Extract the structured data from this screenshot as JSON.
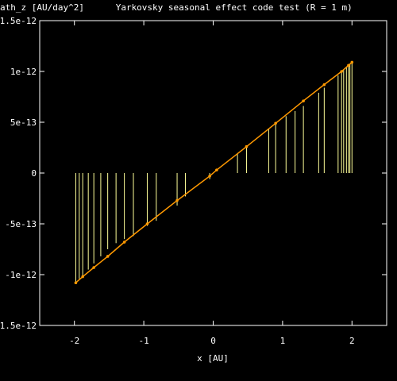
{
  "chart_data": {
    "type": "line",
    "title": "ath_z [AU/day^2]      Yarkovsky seasonal effect code test (R = 1 m)",
    "xlabel": "x [AU]",
    "ylabel": "",
    "xlim": [
      -2.5,
      2.5
    ],
    "ylim": [
      -1.5e-12,
      1.5e-12
    ],
    "x_ticks": [
      -2,
      -1,
      0,
      1,
      2
    ],
    "x_tick_labels": [
      "-2",
      "-1",
      "0",
      "1",
      "2"
    ],
    "y_ticks": [
      -1.5e-12,
      -1e-12,
      -5e-13,
      0,
      5e-13,
      1e-12,
      1.5e-12
    ],
    "y_tick_labels": [
      "-1.5e-12",
      "-1e-12",
      "-5e-13",
      "0",
      "5e-13",
      "1e-12",
      "1.5e-12"
    ],
    "grid": false,
    "legend": "none",
    "colors": {
      "background": "#000000",
      "axes": "#ffffff",
      "impulse": "#ffff99",
      "line": "#ff9900"
    },
    "series": [
      {
        "style": "impulses",
        "x": [
          -1.98,
          -1.93,
          -1.88,
          -1.8,
          -1.72,
          -1.62,
          -1.52,
          -1.4,
          -1.28,
          -1.15,
          -0.95,
          -0.82,
          -0.52,
          -0.4,
          -0.05,
          0.35,
          0.48,
          0.8,
          0.9,
          1.05,
          1.18,
          1.3,
          1.52,
          1.6,
          1.8,
          1.85,
          1.88,
          1.92,
          1.95,
          1.97,
          2.0
        ],
        "values": [
          -1.07e-12,
          -1.04e-12,
          -1.01e-12,
          -9.5e-13,
          -8.9e-13,
          -8.2e-13,
          -7.5e-13,
          -6.9e-13,
          -6.5e-13,
          -6.2e-13,
          -5.2e-13,
          -4.7e-13,
          -3.2e-13,
          -2.3e-13,
          -6e-14,
          1.9e-13,
          2.5e-13,
          4.3e-13,
          4.8e-13,
          5.6e-13,
          6.1e-13,
          6.6e-13,
          7.9e-13,
          8.4e-13,
          9.6e-13,
          1e-12,
          1.02e-12,
          1.04e-12,
          1.05e-12,
          1.07e-12,
          1.08e-12
        ]
      },
      {
        "style": "lines",
        "x": [
          -1.98,
          -1.88,
          -1.72,
          -1.52,
          -1.28,
          -0.95,
          -0.52,
          -0.05,
          0.05,
          0.48,
          0.9,
          1.3,
          1.6,
          1.85,
          1.95,
          2.0
        ],
        "values": [
          -1.08e-12,
          -1.02e-12,
          -9.3e-13,
          -8.2e-13,
          -6.8e-13,
          -5e-13,
          -2.7e-13,
          -3e-14,
          3e-14,
          2.6e-13,
          4.9e-13,
          7.1e-13,
          8.7e-13,
          1e-12,
          1.06e-12,
          1.09e-12
        ]
      }
    ]
  }
}
